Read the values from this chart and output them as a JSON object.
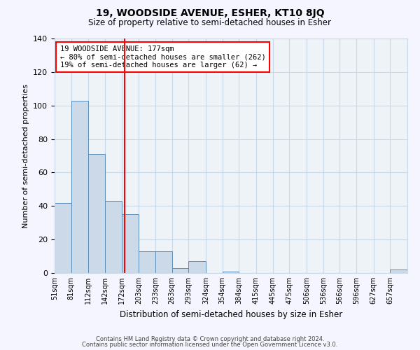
{
  "title": "19, WOODSIDE AVENUE, ESHER, KT10 8JQ",
  "subtitle": "Size of property relative to semi-detached houses in Esher",
  "xlabel": "Distribution of semi-detached houses by size in Esher",
  "ylabel": "Number of semi-detached properties",
  "bin_labels": [
    "51sqm",
    "81sqm",
    "112sqm",
    "142sqm",
    "172sqm",
    "203sqm",
    "233sqm",
    "263sqm",
    "293sqm",
    "324sqm",
    "354sqm",
    "384sqm",
    "415sqm",
    "445sqm",
    "475sqm",
    "506sqm",
    "536sqm",
    "566sqm",
    "596sqm",
    "627sqm",
    "657sqm"
  ],
  "bar_values": [
    42,
    103,
    71,
    43,
    35,
    13,
    13,
    3,
    7,
    0,
    1,
    0,
    0,
    0,
    0,
    0,
    0,
    0,
    0,
    0,
    2
  ],
  "bar_color": "#ccd9e8",
  "bar_edge_color": "#5b8db8",
  "grid_color": "#c8d8e8",
  "bg_color": "#eef3f8",
  "fig_bg_color": "#f5f5ff",
  "red_line_x": 177,
  "bin_edges": [
    51,
    81,
    112,
    142,
    172,
    203,
    233,
    263,
    293,
    324,
    354,
    384,
    415,
    445,
    475,
    506,
    536,
    566,
    596,
    627,
    657,
    688
  ],
  "ylim": [
    0,
    140
  ],
  "yticks": [
    0,
    20,
    40,
    60,
    80,
    100,
    120,
    140
  ],
  "annotation_title": "19 WOODSIDE AVENUE: 177sqm",
  "annotation_line1": "← 80% of semi-detached houses are smaller (262)",
  "annotation_line2": "19% of semi-detached houses are larger (62) →",
  "footnote1": "Contains HM Land Registry data © Crown copyright and database right 2024.",
  "footnote2": "Contains public sector information licensed under the Open Government Licence v3.0."
}
